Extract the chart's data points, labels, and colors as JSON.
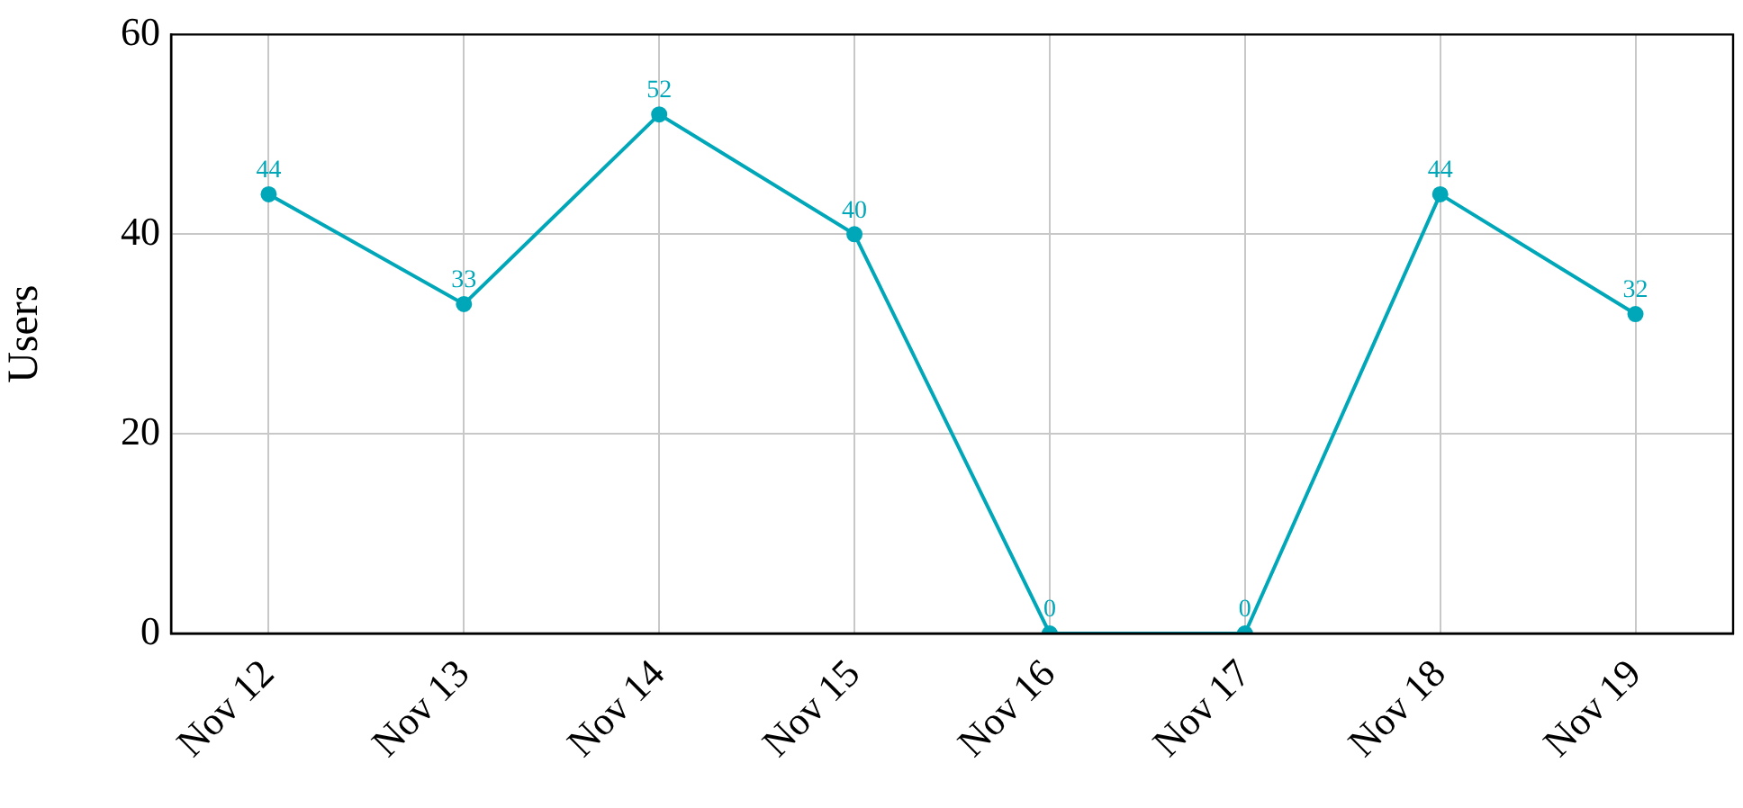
{
  "chart_data": {
    "type": "line",
    "ylabel": "Users",
    "categories": [
      "Nov 12",
      "Nov 13",
      "Nov 14",
      "Nov 15",
      "Nov 16",
      "Nov 17",
      "Nov 18",
      "Nov 19"
    ],
    "series": [
      {
        "color": "#00a7b8",
        "values": [
          44,
          33,
          52,
          40,
          0,
          0,
          44,
          32
        ]
      }
    ],
    "ylim": [
      0,
      60
    ],
    "yticks": [
      0,
      20,
      40,
      60
    ],
    "grid": true,
    "legend": false,
    "marker": "circle",
    "line_style": "solid",
    "data_labels": true
  }
}
